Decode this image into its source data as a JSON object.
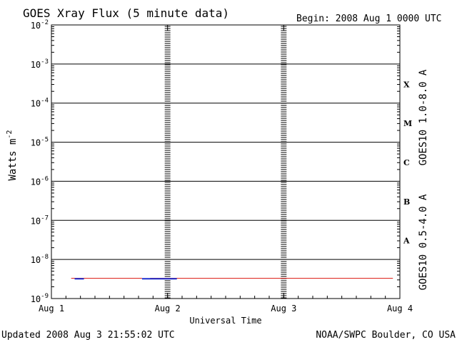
{
  "header": {
    "title": "GOES Xray Flux (5 minute data)",
    "begin": "Begin:  2008 Aug 1 0000 UTC"
  },
  "footer": {
    "updated": "Updated 2008 Aug  3 21:55:02 UTC",
    "credit": "NOAA/SWPC Boulder, CO USA"
  },
  "colors": {
    "long_channel": "#e0302a",
    "short_channel": "#1a2fd0",
    "grid": "#000000"
  },
  "chart_data": {
    "type": "line",
    "title": "GOES Xray Flux (5 minute data)",
    "xlabel": "Universal Time",
    "ylabel_base": "Watts m",
    "ylabel_sup": "-2",
    "yscale": "log",
    "ylim_exp": [
      -9,
      -2
    ],
    "y_ticks": [
      {
        "base": "10",
        "exp": "-2"
      },
      {
        "base": "10",
        "exp": "-3"
      },
      {
        "base": "10",
        "exp": "-4"
      },
      {
        "base": "10",
        "exp": "-5"
      },
      {
        "base": "10",
        "exp": "-6"
      },
      {
        "base": "10",
        "exp": "-7"
      },
      {
        "base": "10",
        "exp": "-8"
      },
      {
        "base": "10",
        "exp": "-9"
      }
    ],
    "x_ticks": [
      "Aug 1",
      "Aug 2",
      "Aug 3",
      "Aug 4"
    ],
    "xlim_days": [
      0,
      3
    ],
    "flare_classes": [
      "X",
      "M",
      "C",
      "B",
      "A"
    ],
    "series": [
      {
        "name": "GOES10 1.0-8.0 A",
        "segments": [
          [
            0.17,
            0.78,
            3.3e-09
          ],
          [
            0.85,
            2.94,
            3.3e-09
          ]
        ]
      },
      {
        "name": "GOES10 0.5-4.0 A",
        "segments": [
          [
            0.2,
            0.28,
            3.2e-09
          ],
          [
            0.78,
            1.08,
            3.2e-09
          ]
        ]
      }
    ]
  }
}
